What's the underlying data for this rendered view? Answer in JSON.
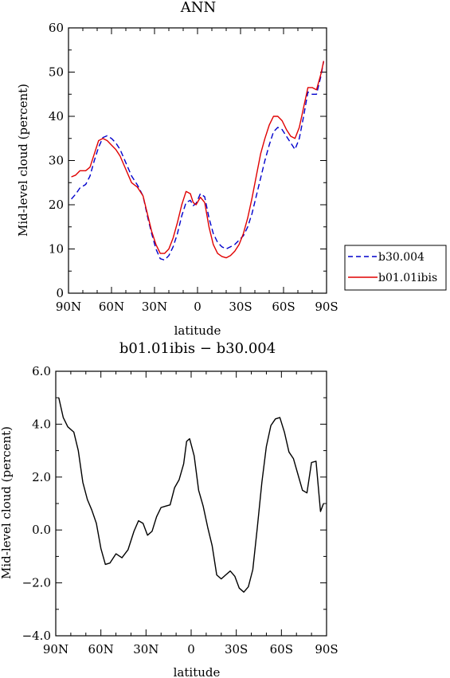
{
  "top_chart": {
    "title": "ANN",
    "xlabel": "latitude",
    "ylabel": "Mid-level cloud (percent)",
    "x_ticks": [
      "90N",
      "60N",
      "30N",
      "0",
      "30S",
      "60S",
      "90S"
    ],
    "y_ticks": [
      "0",
      "10",
      "20",
      "30",
      "40",
      "50",
      "60"
    ],
    "legend": [
      "b30.004",
      "b01.01ibis"
    ],
    "colors": {
      "b30": "#0000cc",
      "ibis": "#e00000"
    }
  },
  "bottom_chart": {
    "title": "b01.01ibis − b30.004",
    "xlabel": "latitude",
    "ylabel": "Mid-level cloud (percent)",
    "x_ticks": [
      "90N",
      "60N",
      "30N",
      "0",
      "30S",
      "60S",
      "90S"
    ],
    "y_ticks": [
      "−4.0",
      "−2.0",
      "0.0",
      "2.0",
      "4.0",
      "6.0"
    ]
  },
  "chart_data": [
    {
      "type": "line",
      "title": "ANN",
      "xlabel": "latitude",
      "ylabel": "Mid-level cloud (percent)",
      "x_unit_note": "latitude in degrees, positive = N",
      "xlim": [
        90,
        -90
      ],
      "ylim": [
        0,
        60
      ],
      "grid": false,
      "legend_placement": "outside-right",
      "series": [
        {
          "name": "b30.004",
          "style": "dashed",
          "x": [
            88,
            85,
            82,
            78,
            75,
            72,
            69,
            66,
            63,
            60,
            57,
            54,
            50,
            46,
            42,
            38,
            35,
            32,
            29,
            26,
            23,
            20,
            17,
            14,
            11,
            8,
            5,
            3,
            1,
            -2,
            -5,
            -8,
            -11,
            -14,
            -17,
            -20,
            -23,
            -26,
            -29,
            -32,
            -35,
            -38,
            -41,
            -44,
            -47,
            -50,
            -53,
            -56,
            -59,
            -62,
            -65,
            -68,
            -71,
            -74,
            -77,
            -80,
            -83,
            -86,
            -88
          ],
          "values": [
            21.3,
            22.4,
            23.8,
            24.6,
            26.5,
            30.0,
            33.0,
            35.2,
            35.6,
            35.0,
            34.0,
            32.5,
            29.5,
            26.5,
            24.5,
            22.0,
            17.5,
            13.5,
            10.0,
            7.8,
            7.5,
            8.5,
            10.5,
            13.5,
            17.5,
            20.5,
            21.0,
            19.8,
            20.3,
            22.5,
            21.8,
            17.0,
            13.5,
            11.5,
            10.5,
            10.0,
            10.5,
            11.0,
            12.0,
            13.0,
            15.0,
            18.0,
            22.0,
            26.0,
            30.0,
            33.5,
            36.5,
            37.5,
            37.0,
            35.5,
            34.0,
            32.5,
            35.0,
            40.0,
            45.5,
            45.0,
            45.0,
            49.0,
            52.5
          ]
        },
        {
          "name": "b01.01ibis",
          "style": "solid",
          "x": [
            88,
            85,
            82,
            78,
            75,
            72,
            69,
            66,
            63,
            60,
            57,
            54,
            50,
            46,
            42,
            38,
            35,
            32,
            29,
            26,
            23,
            20,
            17,
            14,
            11,
            8,
            5,
            3,
            1,
            -2,
            -5,
            -8,
            -11,
            -14,
            -17,
            -20,
            -23,
            -26,
            -29,
            -32,
            -35,
            -38,
            -41,
            -44,
            -47,
            -50,
            -53,
            -56,
            -59,
            -62,
            -65,
            -68,
            -71,
            -74,
            -77,
            -80,
            -83,
            -86,
            -88
          ],
          "values": [
            26.3,
            26.7,
            27.7,
            27.7,
            28.5,
            31.5,
            34.5,
            35.0,
            34.5,
            33.5,
            32.5,
            31.0,
            28.0,
            25.0,
            24.0,
            22.0,
            18.0,
            14.0,
            11.0,
            9.0,
            9.0,
            10.0,
            12.5,
            16.0,
            20.0,
            23.0,
            22.5,
            20.5,
            20.0,
            21.7,
            20.5,
            15.0,
            11.0,
            9.0,
            8.3,
            8.0,
            8.5,
            9.5,
            11.0,
            13.5,
            17.0,
            21.5,
            26.5,
            31.5,
            35.0,
            38.0,
            40.0,
            40.0,
            39.0,
            37.0,
            35.5,
            35.0,
            37.5,
            42.0,
            46.5,
            46.5,
            46.0,
            49.5,
            52.5
          ]
        }
      ]
    },
    {
      "type": "line",
      "title": "b01.01ibis − b30.004",
      "xlabel": "latitude",
      "ylabel": "Mid-level cloud (percent)",
      "xlim": [
        90,
        -90
      ],
      "ylim": [
        -4,
        6
      ],
      "grid": false,
      "series": [
        {
          "style": "solid",
          "x": [
            88,
            85,
            82,
            78,
            75,
            72,
            69,
            66,
            63,
            60,
            57,
            54,
            50,
            46,
            42,
            38,
            35,
            32,
            29,
            26,
            23,
            20,
            17,
            14,
            11,
            8,
            5,
            3,
            1,
            -2,
            -5,
            -8,
            -11,
            -14,
            -17,
            -20,
            -23,
            -26,
            -29,
            -32,
            -35,
            -38,
            -41,
            -44,
            -47,
            -50,
            -53,
            -56,
            -59,
            -62,
            -65,
            -68,
            -71,
            -74,
            -77,
            -80,
            -83,
            -86,
            -88
          ],
          "values": [
            5.0,
            4.25,
            3.9,
            3.7,
            3.0,
            1.8,
            1.15,
            0.75,
            0.25,
            -0.7,
            -1.3,
            -1.25,
            -0.9,
            -1.05,
            -0.75,
            -0.05,
            0.35,
            0.25,
            -0.2,
            -0.05,
            0.5,
            0.85,
            0.9,
            0.95,
            1.6,
            1.9,
            2.5,
            3.35,
            3.45,
            2.8,
            1.5,
            0.9,
            0.1,
            -0.6,
            -1.7,
            -1.85,
            -1.7,
            -1.55,
            -1.75,
            -2.2,
            -2.35,
            -2.15,
            -1.5,
            0.1,
            1.8,
            3.15,
            3.95,
            4.2,
            4.25,
            3.7,
            2.95,
            2.7,
            2.1,
            1.5,
            1.4,
            2.55,
            2.6,
            0.7,
            1.0
          ]
        }
      ]
    }
  ]
}
